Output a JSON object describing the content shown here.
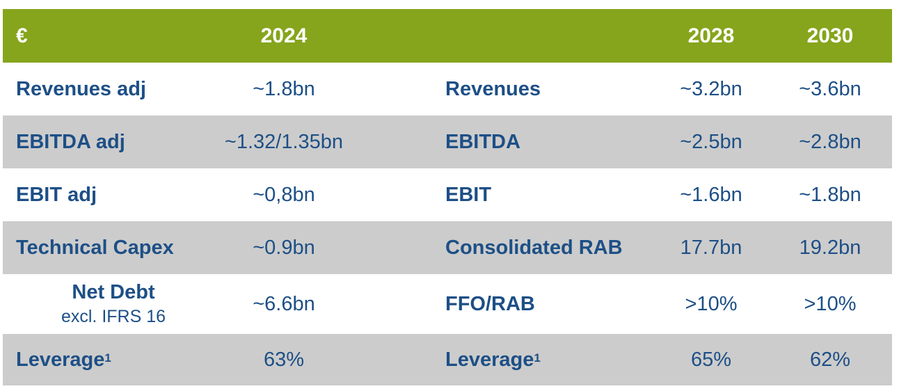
{
  "header": {
    "currency": "€",
    "year_a": "2024",
    "year_b": "2028",
    "year_c": "2030"
  },
  "rows": [
    {
      "label_a": "Revenues adj",
      "val_2024": "~1.8bn",
      "label_b": "Revenues",
      "val_2028": "~3.2bn",
      "val_2030": "~3.6bn"
    },
    {
      "label_a": "EBITDA adj",
      "val_2024": "~1.32/1.35bn",
      "label_b": "EBITDA",
      "val_2028": "~2.5bn",
      "val_2030": "~2.8bn"
    },
    {
      "label_a": "EBIT adj",
      "val_2024": "~0,8bn",
      "label_b": "EBIT",
      "val_2028": "~1.6bn",
      "val_2030": "~1.8bn"
    },
    {
      "label_a": "Technical Capex",
      "val_2024": "~0.9bn",
      "label_b": "Consolidated RAB",
      "val_2028": "17.7bn",
      "val_2030": "19.2bn"
    },
    {
      "label_a": "Net Debt",
      "sublabel_a": "excl. IFRS 16",
      "val_2024": "~6.6bn",
      "label_b": "FFO/RAB",
      "val_2028": ">10%",
      "val_2030": ">10%"
    },
    {
      "label_a": "Leverage",
      "note_a": "1",
      "val_2024": "63%",
      "label_b": "Leverage",
      "note_b": "1",
      "val_2028": "65%",
      "val_2030": "62%"
    }
  ]
}
